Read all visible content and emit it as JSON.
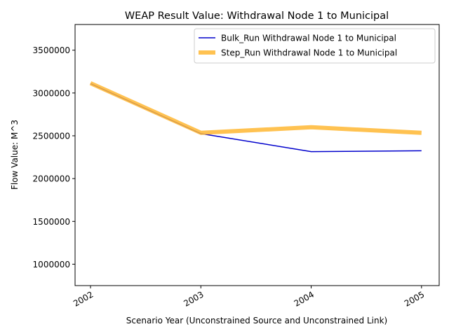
{
  "chart_data": {
    "type": "line",
    "title": "WEAP Result Value: Withdrawal Node 1 to Municipal",
    "xlabel": "Scenario Year (Unconstrained Source and Unconstrained Link)",
    "ylabel": "Flow Value: M^3",
    "categories": [
      "2002",
      "2003",
      "2004",
      "2005"
    ],
    "x": [
      2002,
      2003,
      2004,
      2005
    ],
    "xlim": [
      2001.86,
      2005.16
    ],
    "ylim": [
      750000,
      3800000
    ],
    "yticks": [
      1000000,
      1500000,
      2000000,
      2500000,
      3000000,
      3500000
    ],
    "ytick_labels": [
      "1000000",
      "1500000",
      "2000000",
      "2500000",
      "3000000",
      "3500000"
    ],
    "grid": false,
    "legend_position": "top-right",
    "series": [
      {
        "name": "Bulk_Run Withdrawal Node 1 to Municipal",
        "values": [
          3110000,
          2525000,
          2315000,
          2325000
        ],
        "color": "#0000cc"
      },
      {
        "name": "Step_Run Withdrawal Node 1 to Municipal",
        "values": [
          3115000,
          2535000,
          2600000,
          2535000
        ],
        "color": "#ffb733"
      }
    ]
  }
}
